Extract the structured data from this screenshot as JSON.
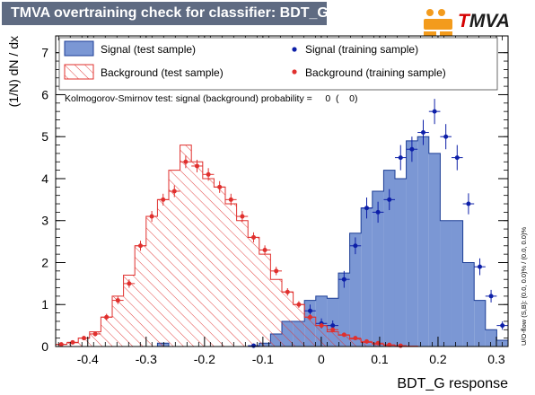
{
  "header": {
    "title": "TMVA overtraining check for classifier: BDT_G",
    "logo_first": "T",
    "logo_rest": "MVA"
  },
  "colors": {
    "signal_fill": "#7b97d4",
    "signal_edge": "#1c3e96",
    "signal_points": "#0d1fa8",
    "background_hatch": "#e0302e",
    "background_points": "#e0302e",
    "title_bg": "#5f6b82",
    "logo_orange": "#f39b1c"
  },
  "legend": {
    "signal_test": "Signal (test sample)",
    "signal_train": "Signal (training sample)",
    "background_test": "Background (test sample)",
    "background_train": "Background (training sample)"
  },
  "ks_text": "Kolmogorov-Smirnov test: signal (background) probability =     0  (    0)",
  "side_note": "U/O-flow (S,B): (0.0, 0.0)% / (0.0, 0.0)%",
  "chart_data": {
    "type": "histogram",
    "xlabel": "BDT_G response",
    "ylabel": "(1/N) dN / dx",
    "xlim": [
      -0.455,
      0.32
    ],
    "ylim": [
      0,
      7.4
    ],
    "x_ticks": [
      -0.4,
      -0.3,
      -0.2,
      -0.1,
      0,
      0.1,
      0.2,
      0.3
    ],
    "x_tick_labels": [
      "-0.4",
      "-0.3",
      "-0.2",
      "-0.1",
      "0",
      "0.1",
      "0.2",
      "0.3"
    ],
    "y_ticks": [
      0,
      1,
      2,
      3,
      4,
      5,
      6,
      7
    ],
    "y_tick_labels": [
      "0",
      "1",
      "2",
      "3",
      "4",
      "5",
      "6",
      "7"
    ],
    "bin_width": 0.0194,
    "bin_centers": [
      -0.4453,
      -0.4259,
      -0.4066,
      -0.3872,
      -0.3678,
      -0.3484,
      -0.3291,
      -0.3097,
      -0.2903,
      -0.2709,
      -0.2516,
      -0.2322,
      -0.2128,
      -0.1934,
      -0.1741,
      -0.1547,
      -0.1353,
      -0.1159,
      -0.0966,
      -0.0772,
      -0.0578,
      -0.0384,
      -0.0191,
      0.0003,
      0.0197,
      0.0391,
      0.0584,
      0.0778,
      0.0972,
      0.1166,
      0.1359,
      0.1553,
      0.1747,
      0.1941,
      0.2134,
      0.2328,
      0.2522,
      0.2716,
      0.2909,
      0.3103
    ],
    "series": [
      {
        "name": "Signal (test sample)",
        "kind": "filled_hist",
        "values": [
          0,
          0,
          0,
          0,
          0,
          0,
          0,
          0,
          0,
          0.08,
          0,
          0,
          0,
          0,
          0,
          0,
          0,
          0,
          0.08,
          0.3,
          0.6,
          0.6,
          1.1,
          1.2,
          1.15,
          1.75,
          2.7,
          3.3,
          3.7,
          4.2,
          4.0,
          4.9,
          5.0,
          4.6,
          3.0,
          3.0,
          2.0,
          1.1,
          0.4,
          0.15
        ]
      },
      {
        "name": "Background (test sample)",
        "kind": "hatched_hist",
        "values": [
          0.05,
          0.09,
          0.2,
          0.35,
          0.7,
          1.2,
          1.7,
          2.4,
          3.1,
          3.5,
          4.2,
          4.8,
          4.4,
          4.0,
          3.8,
          3.4,
          3.0,
          2.6,
          2.2,
          1.6,
          1.3,
          1.0,
          0.7,
          0.5,
          0.35,
          0.27,
          0.18,
          0.1,
          0.06,
          0.03,
          0.02,
          0.01,
          0,
          0,
          0,
          0,
          0,
          0,
          0,
          0
        ]
      },
      {
        "name": "Signal (training sample)",
        "kind": "points",
        "x": [
          -0.1159,
          -0.0191,
          0.0003,
          0.0197,
          0.0391,
          0.0584,
          0.0778,
          0.0972,
          0.1166,
          0.1359,
          0.1553,
          0.1747,
          0.1941,
          0.2134,
          0.2328,
          0.2522,
          0.2716,
          0.2909,
          0.3103
        ],
        "y": [
          0.02,
          0.85,
          0.55,
          0.5,
          1.6,
          2.4,
          3.3,
          3.2,
          3.5,
          4.5,
          4.7,
          5.1,
          5.6,
          5.0,
          4.5,
          3.4,
          1.9,
          1.2,
          0.5
        ],
        "yerr": [
          0.05,
          0.15,
          0.12,
          0.12,
          0.2,
          0.2,
          0.25,
          0.25,
          0.25,
          0.3,
          0.3,
          0.3,
          0.3,
          0.3,
          0.3,
          0.25,
          0.2,
          0.15,
          0.1
        ]
      },
      {
        "name": "Background (training sample)",
        "kind": "points",
        "x": [
          -0.4453,
          -0.4259,
          -0.4066,
          -0.3872,
          -0.3678,
          -0.3484,
          -0.3291,
          -0.3097,
          -0.2903,
          -0.2709,
          -0.2516,
          -0.2322,
          -0.2128,
          -0.1934,
          -0.1741,
          -0.1547,
          -0.1353,
          -0.1159,
          -0.0966,
          -0.0772,
          -0.0578,
          -0.0384,
          -0.0191,
          0.0003,
          0.0197,
          0.0391,
          0.0584,
          0.0778,
          0.0972,
          0.1166,
          0.1359
        ],
        "y": [
          0.05,
          0.1,
          0.2,
          0.3,
          0.7,
          1.1,
          1.5,
          2.4,
          3.1,
          3.5,
          3.7,
          4.4,
          4.3,
          4.1,
          3.8,
          3.5,
          3.1,
          2.6,
          2.3,
          1.8,
          1.3,
          1.0,
          0.7,
          0.5,
          0.4,
          0.28,
          0.2,
          0.12,
          0.08,
          0.04,
          0.02
        ],
        "yerr": [
          0.03,
          0.04,
          0.05,
          0.06,
          0.08,
          0.09,
          0.1,
          0.12,
          0.13,
          0.14,
          0.14,
          0.15,
          0.15,
          0.15,
          0.14,
          0.14,
          0.13,
          0.12,
          0.11,
          0.1,
          0.09,
          0.08,
          0.07,
          0.06,
          0.05,
          0.05,
          0.04,
          0.03,
          0.03,
          0.02,
          0.02
        ]
      }
    ]
  }
}
